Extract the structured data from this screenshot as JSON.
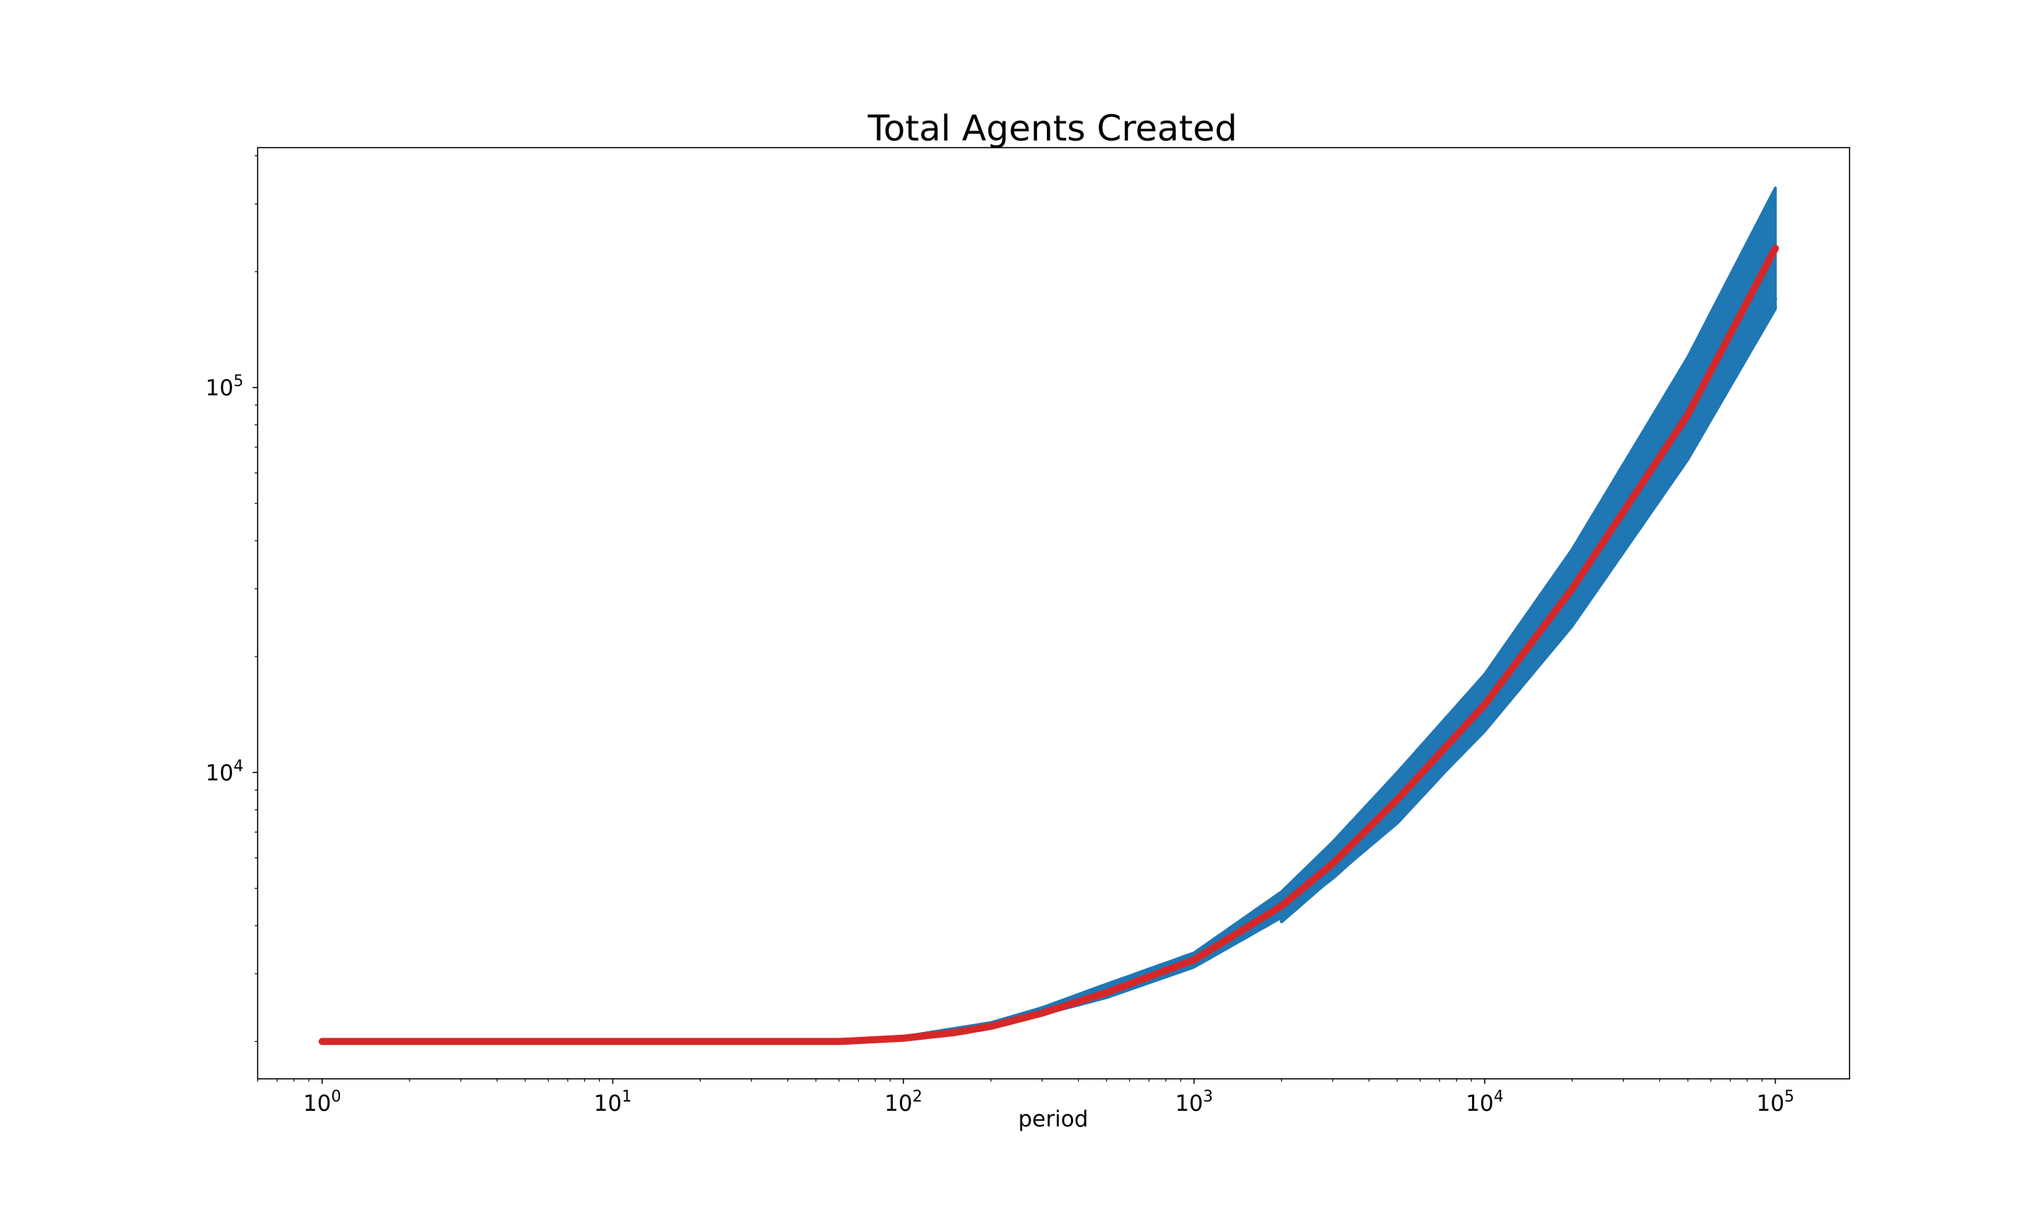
{
  "chart_data": {
    "type": "line",
    "title": "Total Agents Created",
    "xlabel": "period",
    "ylabel": "",
    "xscale": "log",
    "yscale": "log",
    "xlim": [
      0.6,
      180000
    ],
    "ylim": [
      1600,
      420000
    ],
    "grid": false,
    "legend": "none",
    "x_ticks": [
      {
        "value": 1,
        "base": "10",
        "exp": "0"
      },
      {
        "value": 10,
        "base": "10",
        "exp": "1"
      },
      {
        "value": 100,
        "base": "10",
        "exp": "2"
      },
      {
        "value": 1000,
        "base": "10",
        "exp": "3"
      },
      {
        "value": 10000,
        "base": "10",
        "exp": "4"
      },
      {
        "value": 100000,
        "base": "10",
        "exp": "5"
      }
    ],
    "y_ticks": [
      {
        "value": 10000,
        "base": "10",
        "exp": "4"
      },
      {
        "value": 100000,
        "base": "10",
        "exp": "5"
      }
    ],
    "runs_band": {
      "description_color": "#1f77b4",
      "x": [
        1,
        10,
        60,
        100,
        200,
        300,
        500,
        1000,
        2000,
        3000,
        5000,
        10000,
        20000,
        50000,
        100000
      ],
      "lower": [
        2000,
        2000,
        2000,
        2030,
        2180,
        2350,
        2600,
        3120,
        4200,
        5300,
        7500,
        12800,
        24000,
        65000,
        160000
      ],
      "upper": [
        2000,
        2000,
        2000,
        2060,
        2240,
        2450,
        2820,
        3400,
        4900,
        6600,
        10000,
        18000,
        38000,
        120000,
        330000
      ]
    },
    "outlier_runs": [
      {
        "x": [
          2000,
          3000,
          5000,
          10000,
          20000,
          50000,
          100000
        ],
        "values": [
          4150,
          5500,
          7700,
          13500,
          26500,
          75000,
          170000
        ]
      },
      {
        "x": [
          2000,
          3000,
          5000,
          10000,
          20000,
          50000,
          100000
        ],
        "values": [
          4100,
          5350,
          7400,
          13000,
          25000,
          70000,
          162000
        ]
      }
    ],
    "series": [
      {
        "color": "#d62728",
        "x": [
          1,
          10,
          60,
          100,
          150,
          200,
          300,
          500,
          1000,
          2000,
          3000,
          5000,
          10000,
          20000,
          50000,
          100000
        ],
        "values": [
          2000,
          2000,
          2000,
          2040,
          2110,
          2190,
          2370,
          2680,
          3260,
          4500,
          5800,
          8500,
          15000,
          30000,
          85000,
          230000
        ]
      }
    ],
    "colors": {
      "runs": "#1f77b4",
      "mean": "#d62728",
      "axes": "#000000"
    }
  }
}
